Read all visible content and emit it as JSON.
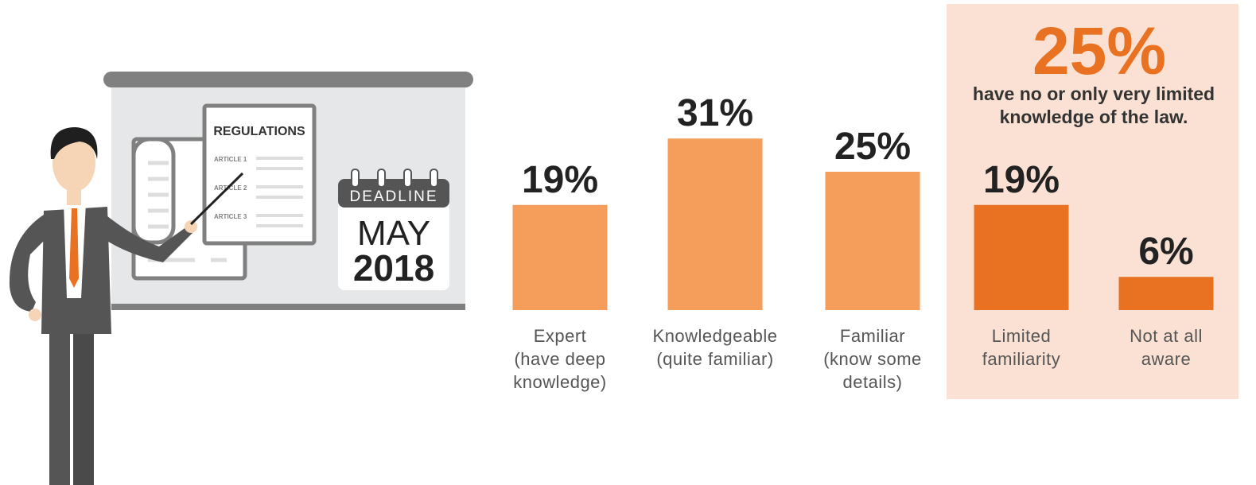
{
  "chart_data": {
    "type": "bar",
    "categories": [
      "Expert\n(have deep\nknowledge)",
      "Knowledgeable\n(quite familiar)",
      "Familiar\n(know some\ndetails)",
      "Limited\nfamiliarity",
      "Not at all\naware"
    ],
    "values": [
      19,
      31,
      25,
      19,
      6
    ],
    "value_labels": [
      "19%",
      "31%",
      "25%",
      "19%",
      "6%"
    ],
    "colors": [
      "#f59e5b",
      "#f59e5b",
      "#f59e5b",
      "#e87222",
      "#e87222"
    ]
  },
  "callout": {
    "headline": "25%",
    "text": "have no or only very limited knowledge of the law."
  },
  "illustration": {
    "document_title": "REGULATIONS",
    "articles": [
      "ARTICLE 1",
      "ARTICLE 2",
      "ARTICLE 3"
    ],
    "calendar_header": "DEADLINE",
    "calendar_month": "MAY",
    "calendar_year": "2018"
  }
}
